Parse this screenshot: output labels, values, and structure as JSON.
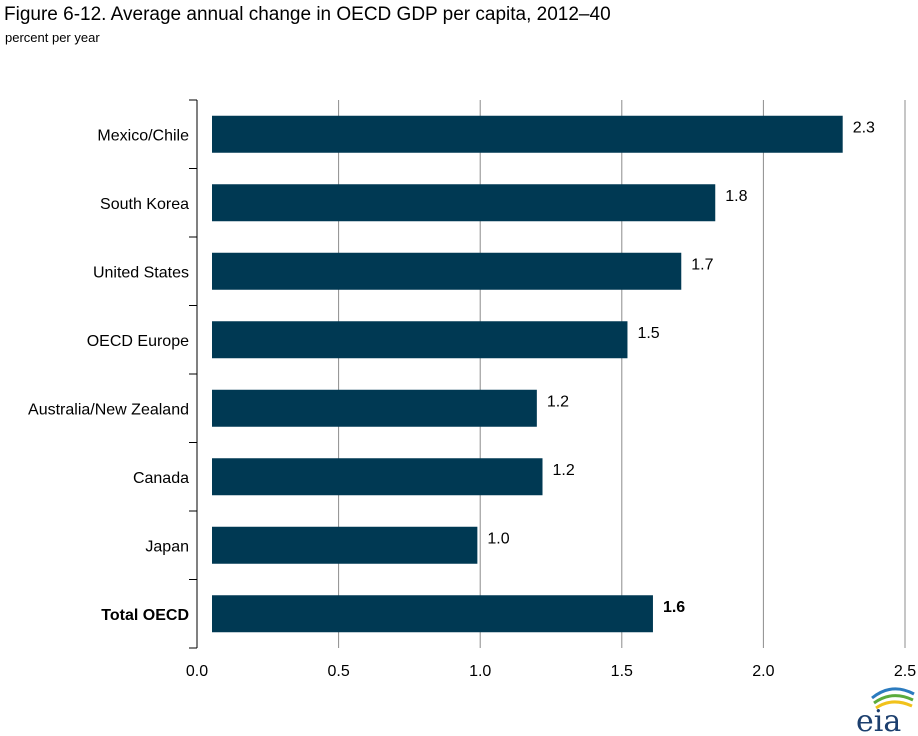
{
  "title": "Figure 6-12. Average annual change in OECD GDP per capita, 2012–40",
  "subtitle": "percent per year",
  "logo_text": "eia",
  "colors": {
    "bar": "#003953",
    "grid": "#8c8c8c",
    "axis": "#000000"
  },
  "chart_data": {
    "type": "bar",
    "orientation": "horizontal",
    "title": "Figure 6-12. Average annual change in OECD GDP per capita, 2012–40",
    "subtitle": "percent per year",
    "xlabel": "",
    "ylabel": "",
    "xlim": [
      0,
      2.5
    ],
    "x_ticks": [
      0,
      0.5,
      1,
      1.5,
      2,
      2.5
    ],
    "x_tick_labels": [
      "0.0",
      "0.5",
      "1.0",
      "1.5",
      "2.0",
      "2.5"
    ],
    "grid": "vertical",
    "legend": "none",
    "categories": [
      "Mexico/Chile",
      "South Korea",
      "United States",
      "OECD Europe",
      "Australia/New Zealand",
      "Canada",
      "Japan",
      "Total OECD"
    ],
    "values": [
      2.28,
      1.83,
      1.71,
      1.52,
      1.2,
      1.22,
      0.99,
      1.61
    ],
    "value_labels": [
      "2.3",
      "1.8",
      "1.7",
      "1.5",
      "1.2",
      "1.2",
      "1.0",
      "1.6"
    ],
    "emphasized_category": "Total OECD"
  }
}
